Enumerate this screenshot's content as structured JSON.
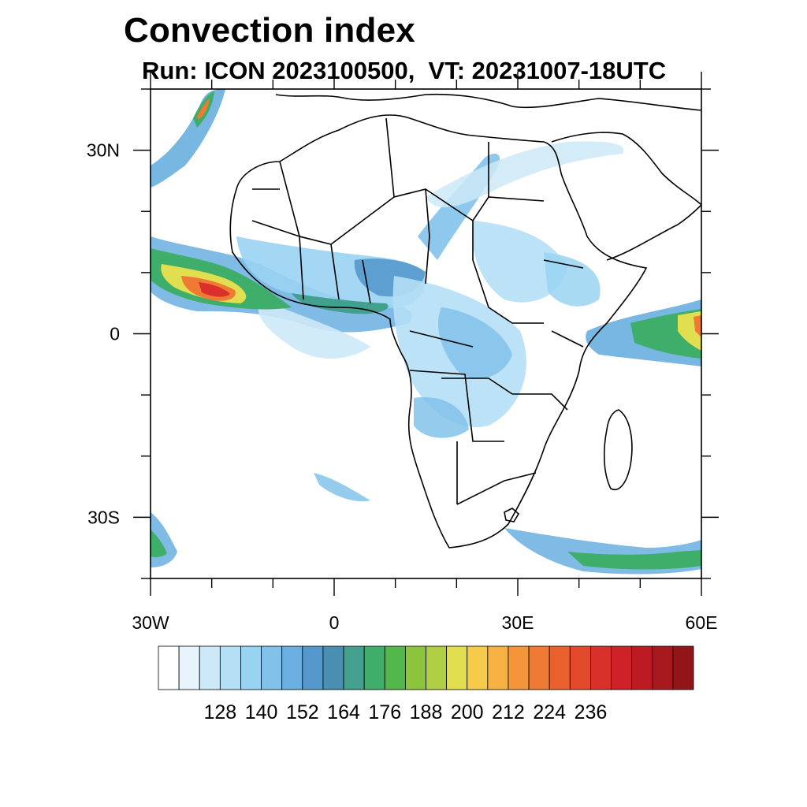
{
  "title": "Convection index",
  "subtitle": "Run: ICON 2023100500,  VT: 20231007-18UTC",
  "map": {
    "lon_range": [
      -30,
      60
    ],
    "lat_range": [
      -40,
      40
    ],
    "x_ticks": [
      {
        "value": -30,
        "label": "30W"
      },
      {
        "value": 0,
        "label": "0"
      },
      {
        "value": 30,
        "label": "30E"
      },
      {
        "value": 60,
        "label": "60E"
      }
    ],
    "y_ticks": [
      {
        "value": 30,
        "label": "30N"
      },
      {
        "value": 0,
        "label": "0"
      },
      {
        "value": -30,
        "label": "30S"
      }
    ]
  },
  "colorbar": {
    "colors": [
      "#ffffff",
      "#e8f4fb",
      "#cde9f7",
      "#b4dff5",
      "#99d3f2",
      "#82c2ea",
      "#6aafe0",
      "#5599cc",
      "#4a8fb2",
      "#44a08e",
      "#3fae6a",
      "#52b84b",
      "#8cc43e",
      "#b0cf45",
      "#e1df4f",
      "#f5cb49",
      "#f6b142",
      "#f4953b",
      "#ef7a33",
      "#e9622d",
      "#e24a2b",
      "#da302b",
      "#ce2128",
      "#bd1b24",
      "#a8181f",
      "#921619"
    ],
    "tick_labels": [
      "128",
      "140",
      "152",
      "164",
      "176",
      "188",
      "200",
      "212",
      "224",
      "236"
    ]
  },
  "colors": {
    "coastline": "#000000",
    "background": "#ffffff"
  }
}
